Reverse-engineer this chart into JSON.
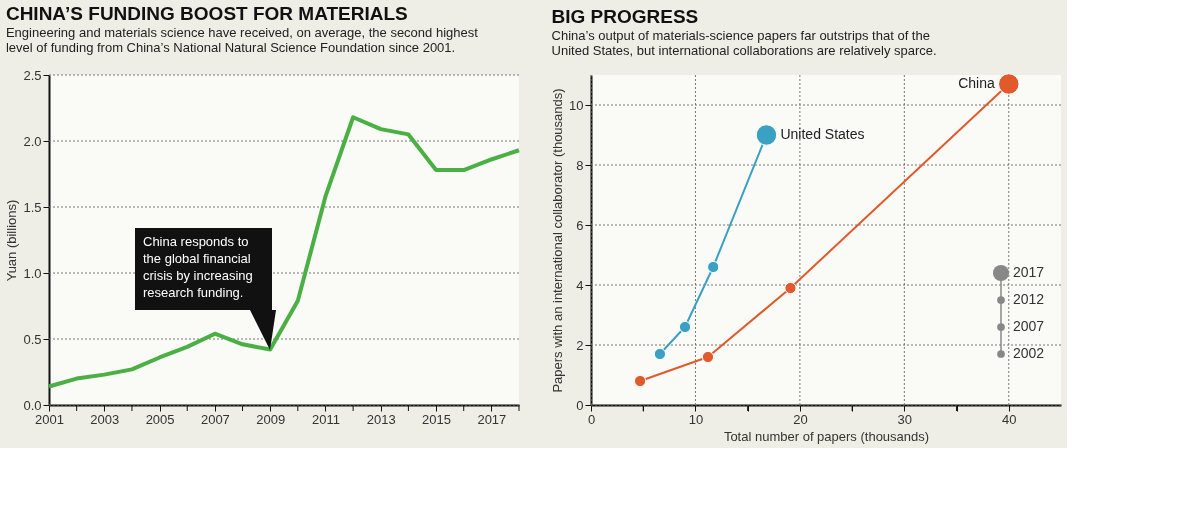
{
  "chart_data": [
    {
      "type": "line",
      "title": "CHINA’S FUNDING BOOST FOR MATERIALS",
      "subtitle": [
        "Engineering and materials science have received, on average, the second highest",
        "level of funding from China’s National Natural Science Foundation since 2001."
      ],
      "ylabel": "Yuan (billions)",
      "x": [
        2001,
        2002,
        2003,
        2004,
        2005,
        2006,
        2007,
        2008,
        2009,
        2010,
        2011,
        2012,
        2013,
        2014,
        2015,
        2016,
        2017,
        2018
      ],
      "series": [
        {
          "color": "#4bb043",
          "values": [
            0.14,
            0.2,
            0.23,
            0.27,
            0.36,
            0.44,
            0.54,
            0.46,
            0.42,
            0.79,
            1.58,
            2.18,
            2.09,
            2.05,
            1.78,
            1.78,
            1.86,
            1.93
          ]
        }
      ],
      "xlim": [
        2001,
        2018
      ],
      "ylim": [
        0,
        2.5
      ],
      "xticks": [
        2001,
        {
          "value": 2002,
          "label": null
        },
        2003,
        {
          "value": 2004,
          "label": null
        },
        2005,
        {
          "value": 2006,
          "label": null
        },
        2007,
        {
          "value": 2008,
          "label": null
        },
        2009,
        {
          "value": 2010,
          "label": null
        },
        2011,
        {
          "value": 2012,
          "label": null
        },
        2013,
        {
          "value": 2014,
          "label": null
        },
        2015,
        {
          "value": 2016,
          "label": null
        },
        2017,
        {
          "value": 2018,
          "label": null
        }
      ],
      "yticks": [
        {
          "value": 0,
          "label": "0.0"
        },
        {
          "value": 0.5,
          "label": "0.5"
        },
        {
          "value": 1,
          "label": "1.0"
        },
        {
          "value": 1.5,
          "label": "1.5"
        },
        {
          "value": 2,
          "label": "2.0"
        },
        {
          "value": 2.5,
          "label": "2.5"
        }
      ],
      "grid": "y",
      "marker": "none",
      "line_style": "solid",
      "annotations": [
        "China responds to\nthe global financial\ncrisis by increasing\nresearch funding."
      ]
    },
    {
      "type": "bubble",
      "title": "BIG PROGRESS",
      "subtitle": [
        "China’s output of materials-science papers far outstrips that of the",
        "United States, but international collaborations are relatively sparce."
      ],
      "xlabel": "Total number of papers (thousands)",
      "ylabel": "Papers with an international collaborator (thousands)",
      "series": [
        {
          "name": "United States",
          "color": "#3aa0c4",
          "x": [
            6.6,
            9.0,
            11.7,
            16.8
          ],
          "values": [
            1.7,
            2.6,
            4.6,
            9.0
          ],
          "sizes": [
            0.3,
            0.3,
            0.3,
            1
          ]
        },
        {
          "name": "China",
          "color": "#e05a2b",
          "x": [
            4.7,
            11.2,
            19.1,
            40.0
          ],
          "values": [
            0.8,
            1.6,
            3.9,
            10.7
          ],
          "sizes": [
            0.3,
            0.3,
            0.3,
            1
          ]
        }
      ],
      "annotations": [
        "2017",
        "2012",
        "2007",
        "2002"
      ],
      "xlim": [
        0,
        45
      ],
      "ylim": [
        0,
        11
      ],
      "xticks": [
        0,
        {
          "value": 5,
          "label": null
        },
        10,
        {
          "value": 15,
          "label": null
        },
        20,
        {
          "value": 25,
          "label": null
        },
        30,
        {
          "value": 35,
          "label": null
        },
        40
      ],
      "yticks": [
        0,
        2,
        4,
        6,
        8,
        10
      ],
      "grid": true,
      "marker": "circle",
      "line_style": "solid"
    }
  ]
}
